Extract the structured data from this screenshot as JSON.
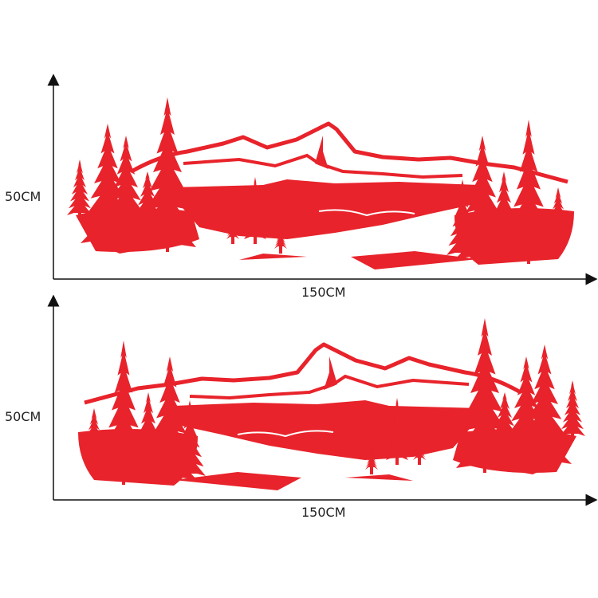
{
  "colors": {
    "decal": "#e8232b",
    "axis": "#111111"
  },
  "panels": [
    {
      "height_label": "50CM",
      "width_label": "150CM",
      "mirrored": false
    },
    {
      "height_label": "50CM",
      "width_label": "150CM",
      "mirrored": true
    }
  ]
}
